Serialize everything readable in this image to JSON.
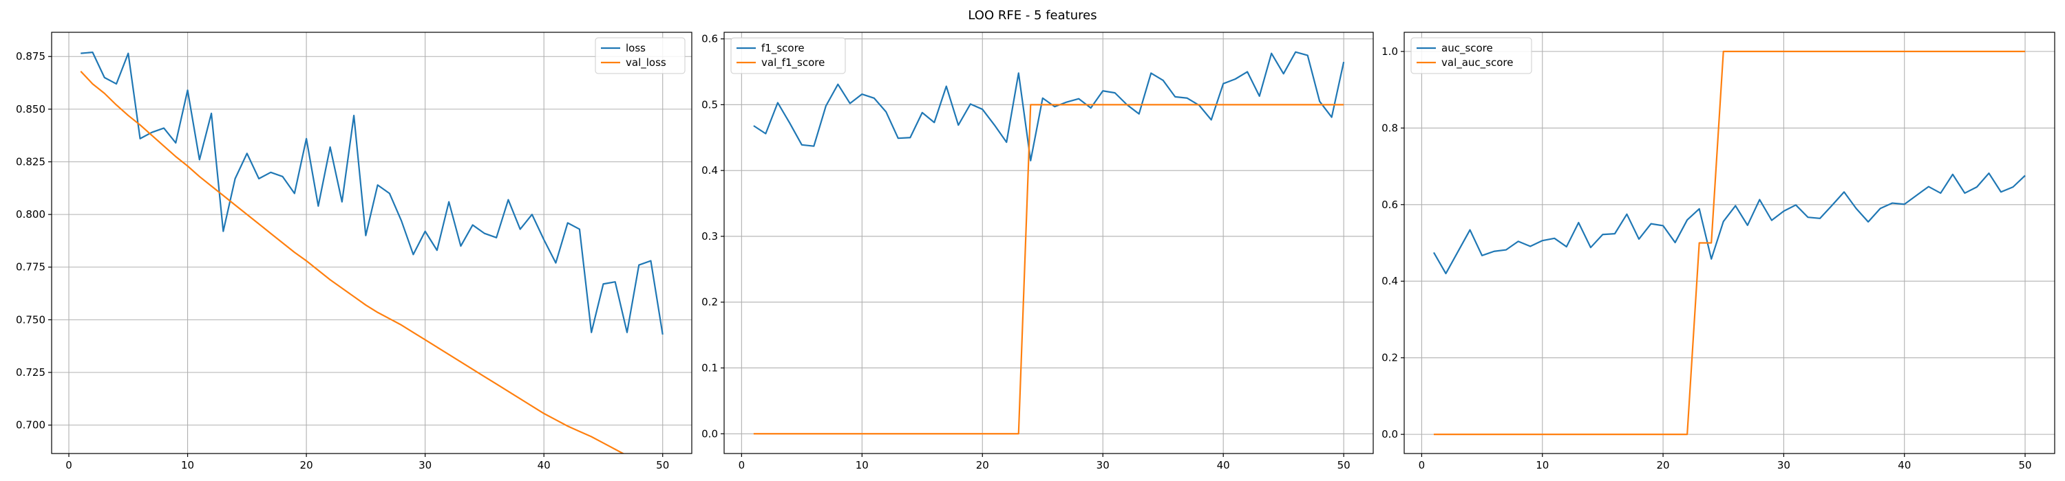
{
  "figure": {
    "title": "LOO RFE - 5 features"
  },
  "chart_data": [
    {
      "type": "line",
      "title": "",
      "xlabel": "",
      "ylabel": "",
      "xlim": [
        -1.45,
        52.45
      ],
      "ylim": [
        0.6865,
        0.8865
      ],
      "xticks": [
        0,
        10,
        20,
        30,
        40,
        50
      ],
      "yticks": [
        0.7,
        0.725,
        0.75,
        0.775,
        0.8,
        0.825,
        0.85,
        0.875
      ],
      "yticklabels": [
        "0.700",
        "0.725",
        "0.750",
        "0.775",
        "0.800",
        "0.825",
        "0.850",
        "0.875"
      ],
      "grid": true,
      "legend_position": "upper-right",
      "series": [
        {
          "name": "loss",
          "color": "#1f77b4",
          "x": [
            1,
            2,
            3,
            4,
            5,
            6,
            7,
            8,
            9,
            10,
            11,
            12,
            13,
            14,
            15,
            16,
            17,
            18,
            19,
            20,
            21,
            22,
            23,
            24,
            25,
            26,
            27,
            28,
            29,
            30,
            31,
            32,
            33,
            34,
            35,
            36,
            37,
            38,
            39,
            40,
            41,
            42,
            43,
            44,
            45,
            46,
            47,
            48,
            49,
            50
          ],
          "values": [
            0.8765,
            0.877,
            0.865,
            0.862,
            0.8765,
            0.836,
            0.839,
            0.841,
            0.834,
            0.859,
            0.826,
            0.848,
            0.792,
            0.817,
            0.829,
            0.817,
            0.82,
            0.818,
            0.81,
            0.836,
            0.804,
            0.832,
            0.806,
            0.847,
            0.79,
            0.814,
            0.81,
            0.797,
            0.781,
            0.792,
            0.783,
            0.806,
            0.785,
            0.795,
            0.791,
            0.789,
            0.807,
            0.793,
            0.8,
            0.788,
            0.777,
            0.796,
            0.793,
            0.744,
            0.767,
            0.768,
            0.744,
            0.776,
            0.778,
            0.743
          ]
        },
        {
          "name": "val_loss",
          "color": "#ff7f0e",
          "x": [
            1,
            2,
            3,
            4,
            5,
            6,
            7,
            8,
            9,
            10,
            11,
            12,
            13,
            14,
            15,
            16,
            17,
            18,
            19,
            20,
            21,
            22,
            23,
            24,
            25,
            26,
            27,
            28,
            29,
            30,
            31,
            32,
            33,
            34,
            35,
            36,
            37,
            38,
            39,
            40,
            41,
            42,
            43,
            44,
            45,
            46,
            47,
            48,
            49,
            50
          ],
          "values": [
            0.868,
            0.862,
            0.8575,
            0.852,
            0.847,
            0.8425,
            0.8375,
            0.8325,
            0.8275,
            0.823,
            0.818,
            0.8135,
            0.809,
            0.8045,
            0.8,
            0.7955,
            0.791,
            0.7865,
            0.782,
            0.778,
            0.7735,
            0.769,
            0.765,
            0.761,
            0.757,
            0.7535,
            0.7505,
            0.7475,
            0.744,
            0.7405,
            0.737,
            0.7335,
            0.73,
            0.7265,
            0.723,
            0.7195,
            0.716,
            0.7125,
            0.709,
            0.7055,
            0.7025,
            0.6995,
            0.697,
            0.6945,
            0.6915,
            0.6885,
            0.6855,
            0.6825,
            0.6795,
            0.677
          ]
        }
      ]
    },
    {
      "type": "line",
      "title": "",
      "xlabel": "",
      "ylabel": "",
      "xlim": [
        -1.45,
        52.45
      ],
      "ylim": [
        -0.03,
        0.61
      ],
      "xticks": [
        0,
        10,
        20,
        30,
        40,
        50
      ],
      "yticks": [
        0.0,
        0.1,
        0.2,
        0.3,
        0.4,
        0.5,
        0.6
      ],
      "yticklabels": [
        "0.0",
        "0.1",
        "0.2",
        "0.3",
        "0.4",
        "0.5",
        "0.6"
      ],
      "grid": true,
      "legend_position": "upper-left",
      "series": [
        {
          "name": "f1_score",
          "color": "#1f77b4",
          "x": [
            1,
            2,
            3,
            4,
            5,
            6,
            7,
            8,
            9,
            10,
            11,
            12,
            13,
            14,
            15,
            16,
            17,
            18,
            19,
            20,
            21,
            22,
            23,
            24,
            25,
            26,
            27,
            28,
            29,
            30,
            31,
            32,
            33,
            34,
            35,
            36,
            37,
            38,
            39,
            40,
            41,
            42,
            43,
            44,
            45,
            46,
            47,
            48,
            49,
            50
          ],
          "values": [
            0.468,
            0.456,
            0.503,
            0.472,
            0.439,
            0.437,
            0.498,
            0.531,
            0.502,
            0.516,
            0.51,
            0.489,
            0.449,
            0.45,
            0.488,
            0.473,
            0.528,
            0.469,
            0.501,
            0.493,
            0.469,
            0.443,
            0.548,
            0.415,
            0.51,
            0.497,
            0.504,
            0.509,
            0.495,
            0.521,
            0.518,
            0.5,
            0.486,
            0.548,
            0.537,
            0.512,
            0.51,
            0.499,
            0.477,
            0.532,
            0.539,
            0.55,
            0.513,
            0.578,
            0.547,
            0.58,
            0.575,
            0.505,
            0.481,
            0.565
          ]
        },
        {
          "name": "val_f1_score",
          "color": "#ff7f0e",
          "x": [
            1,
            2,
            3,
            4,
            5,
            6,
            7,
            8,
            9,
            10,
            11,
            12,
            13,
            14,
            15,
            16,
            17,
            18,
            19,
            20,
            21,
            22,
            23,
            24,
            25,
            26,
            27,
            28,
            29,
            30,
            31,
            32,
            33,
            34,
            35,
            36,
            37,
            38,
            39,
            40,
            41,
            42,
            43,
            44,
            45,
            46,
            47,
            48,
            49,
            50
          ],
          "values": [
            0,
            0,
            0,
            0,
            0,
            0,
            0,
            0,
            0,
            0,
            0,
            0,
            0,
            0,
            0,
            0,
            0,
            0,
            0,
            0,
            0,
            0,
            0,
            0.5,
            0.5,
            0.5,
            0.5,
            0.5,
            0.5,
            0.5,
            0.5,
            0.5,
            0.5,
            0.5,
            0.5,
            0.5,
            0.5,
            0.5,
            0.5,
            0.5,
            0.5,
            0.5,
            0.5,
            0.5,
            0.5,
            0.5,
            0.5,
            0.5,
            0.5,
            0.5
          ]
        }
      ]
    },
    {
      "type": "line",
      "title": "",
      "xlabel": "",
      "ylabel": "",
      "xlim": [
        -1.45,
        52.45
      ],
      "ylim": [
        -0.05,
        1.05
      ],
      "xticks": [
        0,
        10,
        20,
        30,
        40,
        50
      ],
      "yticks": [
        0.0,
        0.2,
        0.4,
        0.6,
        0.8,
        1.0
      ],
      "yticklabels": [
        "0.0",
        "0.2",
        "0.4",
        "0.6",
        "0.8",
        "1.0"
      ],
      "grid": true,
      "legend_position": "upper-left",
      "series": [
        {
          "name": "auc_score",
          "color": "#1f77b4",
          "x": [
            1,
            2,
            3,
            4,
            5,
            6,
            7,
            8,
            9,
            10,
            11,
            12,
            13,
            14,
            15,
            16,
            17,
            18,
            19,
            20,
            21,
            22,
            23,
            24,
            25,
            26,
            27,
            28,
            29,
            30,
            31,
            32,
            33,
            34,
            35,
            36,
            37,
            38,
            39,
            40,
            41,
            42,
            43,
            44,
            45,
            46,
            47,
            48,
            49,
            50
          ],
          "values": [
            0.475,
            0.42,
            0.477,
            0.534,
            0.467,
            0.478,
            0.482,
            0.504,
            0.491,
            0.506,
            0.512,
            0.49,
            0.553,
            0.488,
            0.522,
            0.524,
            0.575,
            0.51,
            0.55,
            0.545,
            0.501,
            0.56,
            0.589,
            0.458,
            0.556,
            0.597,
            0.546,
            0.613,
            0.559,
            0.583,
            0.599,
            0.567,
            0.564,
            0.598,
            0.633,
            0.59,
            0.555,
            0.59,
            0.604,
            0.601,
            0.624,
            0.647,
            0.63,
            0.679,
            0.63,
            0.646,
            0.682,
            0.633,
            0.646,
            0.676
          ]
        },
        {
          "name": "val_auc_score",
          "color": "#ff7f0e",
          "x": [
            1,
            2,
            3,
            4,
            5,
            6,
            7,
            8,
            9,
            10,
            11,
            12,
            13,
            14,
            15,
            16,
            17,
            18,
            19,
            20,
            21,
            22,
            23,
            24,
            25,
            26,
            27,
            28,
            29,
            30,
            31,
            32,
            33,
            34,
            35,
            36,
            37,
            38,
            39,
            40,
            41,
            42,
            43,
            44,
            45,
            46,
            47,
            48,
            49,
            50
          ],
          "values": [
            0,
            0,
            0,
            0,
            0,
            0,
            0,
            0,
            0,
            0,
            0,
            0,
            0,
            0,
            0,
            0,
            0,
            0,
            0,
            0,
            0,
            0,
            0.5,
            0.5,
            1,
            1,
            1,
            1,
            1,
            1,
            1,
            1,
            1,
            1,
            1,
            1,
            1,
            1,
            1,
            1,
            1,
            1,
            1,
            1,
            1,
            1,
            1,
            1,
            1,
            1
          ]
        }
      ]
    }
  ]
}
